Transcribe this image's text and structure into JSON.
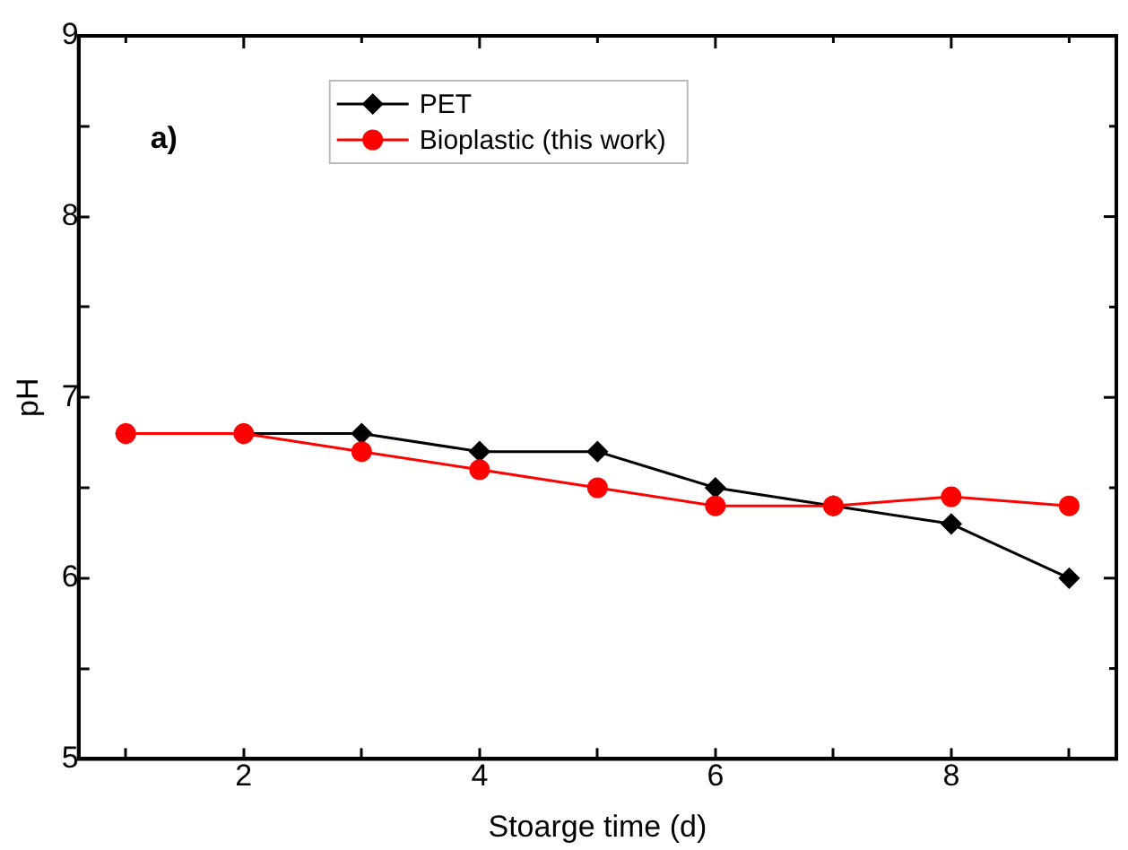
{
  "chart_data": {
    "type": "line",
    "xlabel": "Stoarge time (d)",
    "ylabel": "pH",
    "annotations": [
      "a)"
    ],
    "x": [
      1,
      2,
      3,
      4,
      5,
      6,
      7,
      8,
      9
    ],
    "series": [
      {
        "name": "PET",
        "color": "#000000",
        "marker": "diamond",
        "values": [
          6.8,
          6.8,
          6.8,
          6.7,
          6.7,
          6.5,
          6.4,
          6.3,
          6.0
        ]
      },
      {
        "name": "Bioplastic (this work)",
        "color": "#ff0000",
        "marker": "circle",
        "values": [
          6.8,
          6.8,
          6.7,
          6.6,
          6.5,
          6.4,
          6.4,
          6.45,
          6.4
        ]
      }
    ],
    "xlim": [
      0.6,
      9.4
    ],
    "xticks": [
      {
        "value": 1,
        "label": null
      },
      2,
      {
        "value": 3,
        "label": null
      },
      4,
      {
        "value": 5,
        "label": null
      },
      6,
      {
        "value": 7,
        "label": null
      },
      8,
      {
        "value": 9,
        "label": null
      }
    ],
    "ylim": [
      5,
      9
    ],
    "yticks": [
      5,
      {
        "value": 5.5,
        "label": null
      },
      6,
      {
        "value": 6.5,
        "label": null
      },
      7,
      {
        "value": 7.5,
        "label": null
      },
      8,
      {
        "value": 8.5,
        "label": null
      },
      9
    ],
    "grid": false,
    "legend": "top",
    "line_style": "solid"
  }
}
